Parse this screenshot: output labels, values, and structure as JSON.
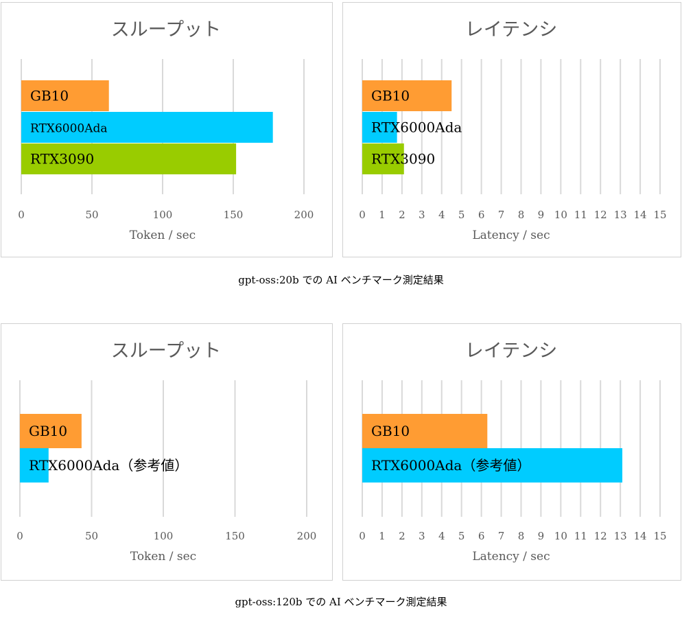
{
  "colors": {
    "orange": "#FF9C33",
    "cyan": "#00CCFF",
    "green": "#99CC00",
    "grid": "#D9D9D9",
    "text": "#595959"
  },
  "captions": [
    "gpt-oss:20b での AI ベンチマーク測定結果",
    "gpt-oss:120b での AI ベンチマーク測定結果"
  ],
  "chart_data": [
    {
      "type": "bar",
      "orientation": "horizontal",
      "title": "スループット",
      "xlabel": "Token / sec",
      "xlim": [
        0,
        200
      ],
      "xticks": [
        0,
        50,
        100,
        150,
        200
      ],
      "categories": [
        "GB10",
        "RTX6000Ada",
        "RTX3090"
      ],
      "values": [
        62,
        178,
        152
      ],
      "bar_colors": [
        "#FF9C33",
        "#00CCFF",
        "#99CC00"
      ]
    },
    {
      "type": "bar",
      "orientation": "horizontal",
      "title": "レイテンシ",
      "xlabel": "Latency / sec",
      "xlim": [
        0,
        15
      ],
      "xticks": [
        0,
        1,
        2,
        3,
        4,
        5,
        6,
        7,
        8,
        9,
        10,
        11,
        12,
        13,
        14,
        15
      ],
      "categories": [
        "GB10",
        "RTX6000Ada",
        "RTX3090"
      ],
      "values": [
        4.5,
        1.75,
        2.1
      ],
      "bar_colors": [
        "#FF9C33",
        "#00CCFF",
        "#99CC00"
      ]
    },
    {
      "type": "bar",
      "orientation": "horizontal",
      "title": "スループット",
      "xlabel": "Token / sec",
      "xlim": [
        0,
        200
      ],
      "xticks": [
        0,
        50,
        100,
        150,
        200
      ],
      "categories": [
        "GB10",
        "RTX6000Ada（参考値）"
      ],
      "values": [
        43,
        20
      ],
      "bar_colors": [
        "#FF9C33",
        "#00CCFF"
      ]
    },
    {
      "type": "bar",
      "orientation": "horizontal",
      "title": "レイテンシ",
      "xlabel": "Latency / sec",
      "xlim": [
        0,
        15
      ],
      "xticks": [
        0,
        1,
        2,
        3,
        4,
        5,
        6,
        7,
        8,
        9,
        10,
        11,
        12,
        13,
        14,
        15
      ],
      "categories": [
        "GB10",
        "RTX6000Ada（参考値）"
      ],
      "values": [
        6.3,
        13.1
      ],
      "bar_colors": [
        "#FF9C33",
        "#00CCFF"
      ]
    }
  ]
}
